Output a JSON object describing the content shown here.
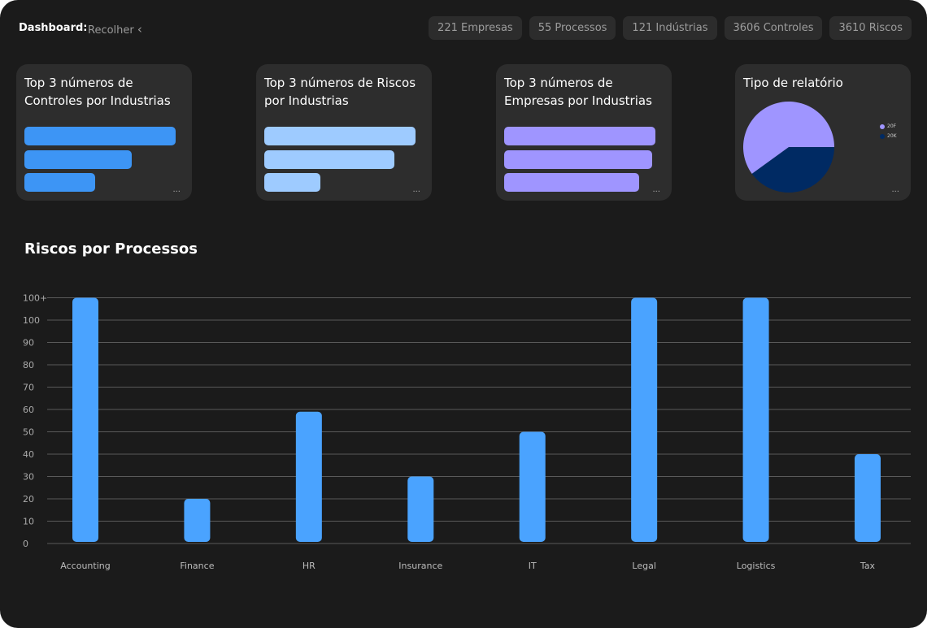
{
  "header": {
    "title": "Dashboard:",
    "collapse_label": "Recolher",
    "collapse_icon": "chevron-left-icon"
  },
  "stats": [
    "221 Empresas",
    "55 Processos",
    "121 Indústrias",
    "3606 Controles",
    "3610 Riscos"
  ],
  "cards": [
    {
      "title": "Top 3 números de Controles por Industrias",
      "color": "#3d95f5",
      "values": [
        1,
        0.71,
        0.47
      ]
    },
    {
      "title": "Top 3 números de Riscos por Industrias",
      "color": "#9ecbff",
      "values": [
        1,
        0.86,
        0.37
      ]
    },
    {
      "title": "Top 3 números de Empresas por Industrias",
      "color": "#9f95ff",
      "values": [
        1,
        0.98,
        0.89
      ]
    }
  ],
  "pie_card": {
    "title": "Tipo de relatório",
    "more": "...",
    "slices": [
      {
        "label": "20F",
        "value": 0.6,
        "color": "#9f95ff"
      },
      {
        "label": "20K",
        "value": 0.4,
        "color": "#002a63"
      }
    ]
  },
  "more": "...",
  "chart_data": {
    "type": "bar",
    "title": "Riscos por Processos",
    "categories": [
      "Accounting",
      "Finance",
      "HR",
      "Insurance",
      "IT",
      "Legal",
      "Logistics",
      "Tax"
    ],
    "values": [
      "100+",
      20,
      59,
      30,
      50,
      "100+",
      "100+",
      40
    ],
    "yticks": [
      "0",
      "10",
      "20",
      "30",
      "40",
      "50",
      "60",
      "70",
      "80",
      "90",
      "100",
      "100+"
    ],
    "ylim": [
      0,
      100
    ],
    "grid": true,
    "color": "#4aa3ff"
  }
}
